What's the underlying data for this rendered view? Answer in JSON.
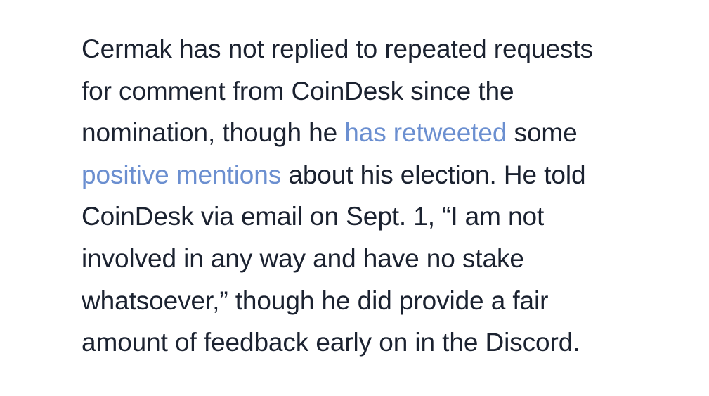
{
  "article": {
    "paragraph": {
      "line1": "Cermak has not replied to repeated requests",
      "line2": "for comment from CoinDesk since the",
      "line3_before": "nomination, though he ",
      "link_retweeted": "has retweeted",
      "line3_after": " some",
      "link_positive_mentions": "positive mentions",
      "line4_after": " about his election. He told",
      "line5": "CoinDesk via email on Sept. 1, “I am not",
      "line6": "involved in any way and have no stake",
      "line7": "whatsoever,” though he did provide a fair",
      "line8": "amount of feedback early on in the Discord."
    },
    "colors": {
      "text": "#1b2230",
      "link": "#6b8fd0",
      "background": "#ffffff"
    }
  }
}
